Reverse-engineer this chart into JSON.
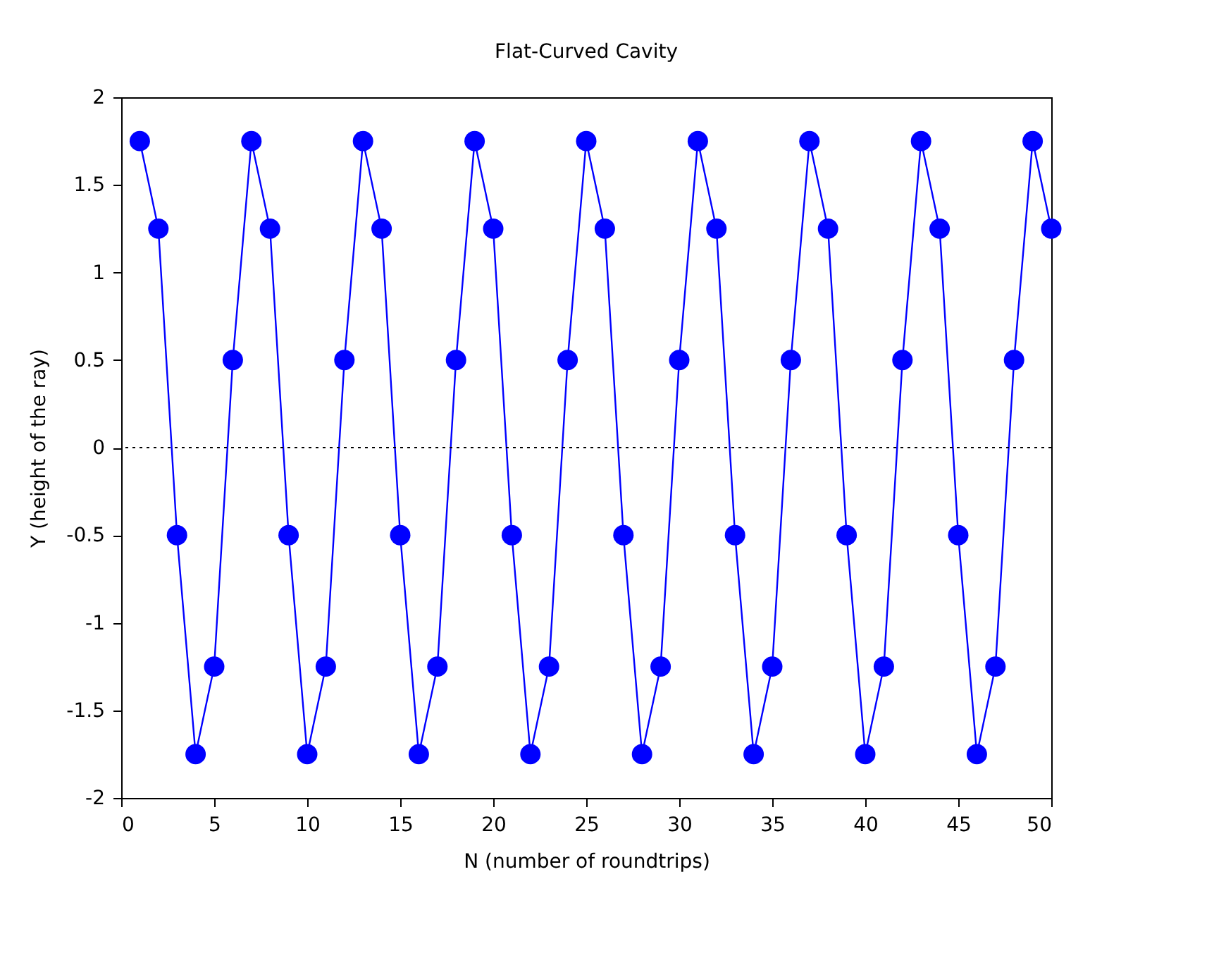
{
  "chart_data": {
    "type": "line",
    "title": "Flat-Curved Cavity",
    "xlabel": "N (number of roundtrips)",
    "ylabel": "Y (height of the ray)",
    "x": [
      1,
      2,
      3,
      4,
      5,
      6,
      7,
      8,
      9,
      10,
      11,
      12,
      13,
      14,
      15,
      16,
      17,
      18,
      19,
      20,
      21,
      22,
      23,
      24,
      25,
      26,
      27,
      28,
      29,
      30,
      31,
      32,
      33,
      34,
      35,
      36,
      37,
      38,
      39,
      40,
      41,
      42,
      43,
      44,
      45,
      46,
      47,
      48,
      49,
      50
    ],
    "series": [
      {
        "color": "#0000ff",
        "values": [
          1.75,
          1.25,
          -0.5,
          -1.75,
          -1.25,
          0.5,
          1.75,
          1.25,
          -0.5,
          -1.75,
          -1.25,
          0.5,
          1.75,
          1.25,
          -0.5,
          -1.75,
          -1.25,
          0.5,
          1.75,
          1.25,
          -0.5,
          -1.75,
          -1.25,
          0.5,
          1.75,
          1.25,
          -0.5,
          -1.75,
          -1.25,
          0.5,
          1.75,
          1.25,
          -0.5,
          -1.75,
          -1.25,
          0.5,
          1.75,
          1.25,
          -0.5,
          -1.75,
          -1.25,
          0.5,
          1.75,
          1.25,
          -0.5,
          -1.75,
          -1.25,
          0.5,
          1.75,
          1.25
        ]
      }
    ],
    "xlim": [
      0,
      50
    ],
    "xticks": [
      0,
      5,
      10,
      15,
      20,
      25,
      30,
      35,
      40,
      45,
      50
    ],
    "ylim": [
      -2,
      2
    ],
    "yticks": [
      -2,
      -1.5,
      -1,
      -0.5,
      0,
      0.5,
      1,
      1.5,
      2
    ],
    "ref_lines": [
      {
        "axis": "y",
        "value": 0,
        "line_style": "dotted",
        "color": "#000000"
      }
    ],
    "marker": "circle",
    "line_style": "solid",
    "grid": false
  }
}
